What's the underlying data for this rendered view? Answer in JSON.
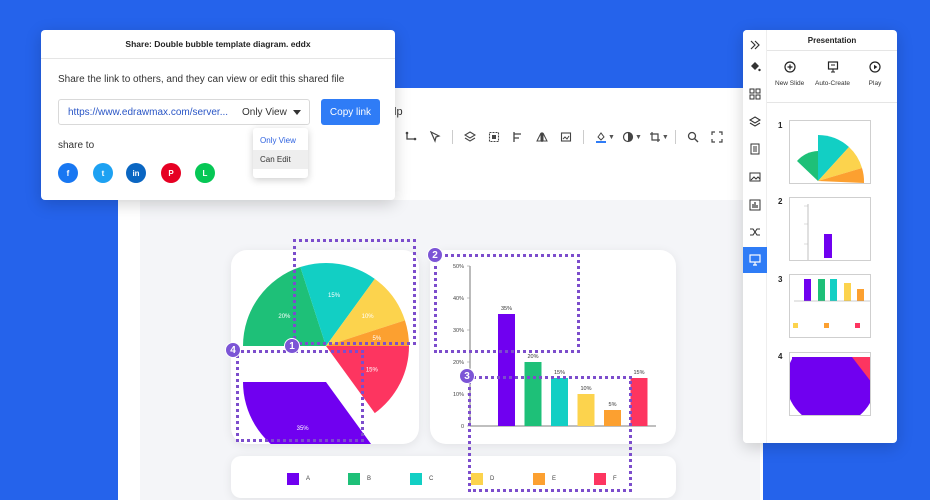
{
  "share_dialog": {
    "title": "Share: Double bubble template diagram. eddx",
    "description": "Share the link to others, and they can view or edit this shared file",
    "link_value": "https://www.edrawmax.com/server...",
    "permission_selected": "Only View",
    "copy_button": "Copy link",
    "share_to_label": "share to",
    "dropdown_options": [
      "Only View",
      "Can Edit"
    ],
    "social": [
      {
        "name": "facebook",
        "glyph": "f",
        "color": "#1877f2"
      },
      {
        "name": "twitter",
        "glyph": "t",
        "color": "#1da1f2"
      },
      {
        "name": "linkedin",
        "glyph": "in",
        "color": "#0a66c2"
      },
      {
        "name": "pinterest",
        "glyph": "P",
        "color": "#e60023"
      },
      {
        "name": "line",
        "glyph": "L",
        "color": "#06c755"
      }
    ]
  },
  "editor": {
    "menu_partial": "lp"
  },
  "presentation": {
    "title": "Presentation",
    "actions": [
      "New Slide",
      "Auto-Create",
      "Play"
    ],
    "slides": [
      "1",
      "2",
      "3",
      "4"
    ]
  },
  "markers": [
    "1",
    "2",
    "3",
    "4"
  ],
  "colors": {
    "A": "#7000f0",
    "B": "#1ec078",
    "C": "#12cfc4",
    "D": "#fcd34d",
    "E": "#fca030",
    "F": "#fd3560",
    "accent": "#2f7cf6",
    "selection": "#7c4dcc"
  },
  "chart_data": [
    {
      "type": "pie",
      "categories": [
        "A",
        "B",
        "C",
        "D",
        "E",
        "F"
      ],
      "values": [
        35,
        20,
        15,
        10,
        5,
        15
      ],
      "data_labels": [
        "35%",
        "20%",
        "15%",
        "10%",
        "5%",
        "15%"
      ]
    },
    {
      "type": "bar",
      "categories": [
        "A",
        "B",
        "C",
        "D",
        "E",
        "F"
      ],
      "values": [
        35,
        20,
        15,
        10,
        5,
        15
      ],
      "data_labels": [
        "35%",
        "20%",
        "15%",
        "10%",
        "5%",
        "15%"
      ],
      "y_ticks": [
        "0",
        "10%",
        "20%",
        "30%",
        "40%",
        "50%"
      ],
      "ylim": [
        0,
        50
      ]
    }
  ],
  "legend": [
    "A",
    "B",
    "C",
    "D",
    "E",
    "F"
  ]
}
